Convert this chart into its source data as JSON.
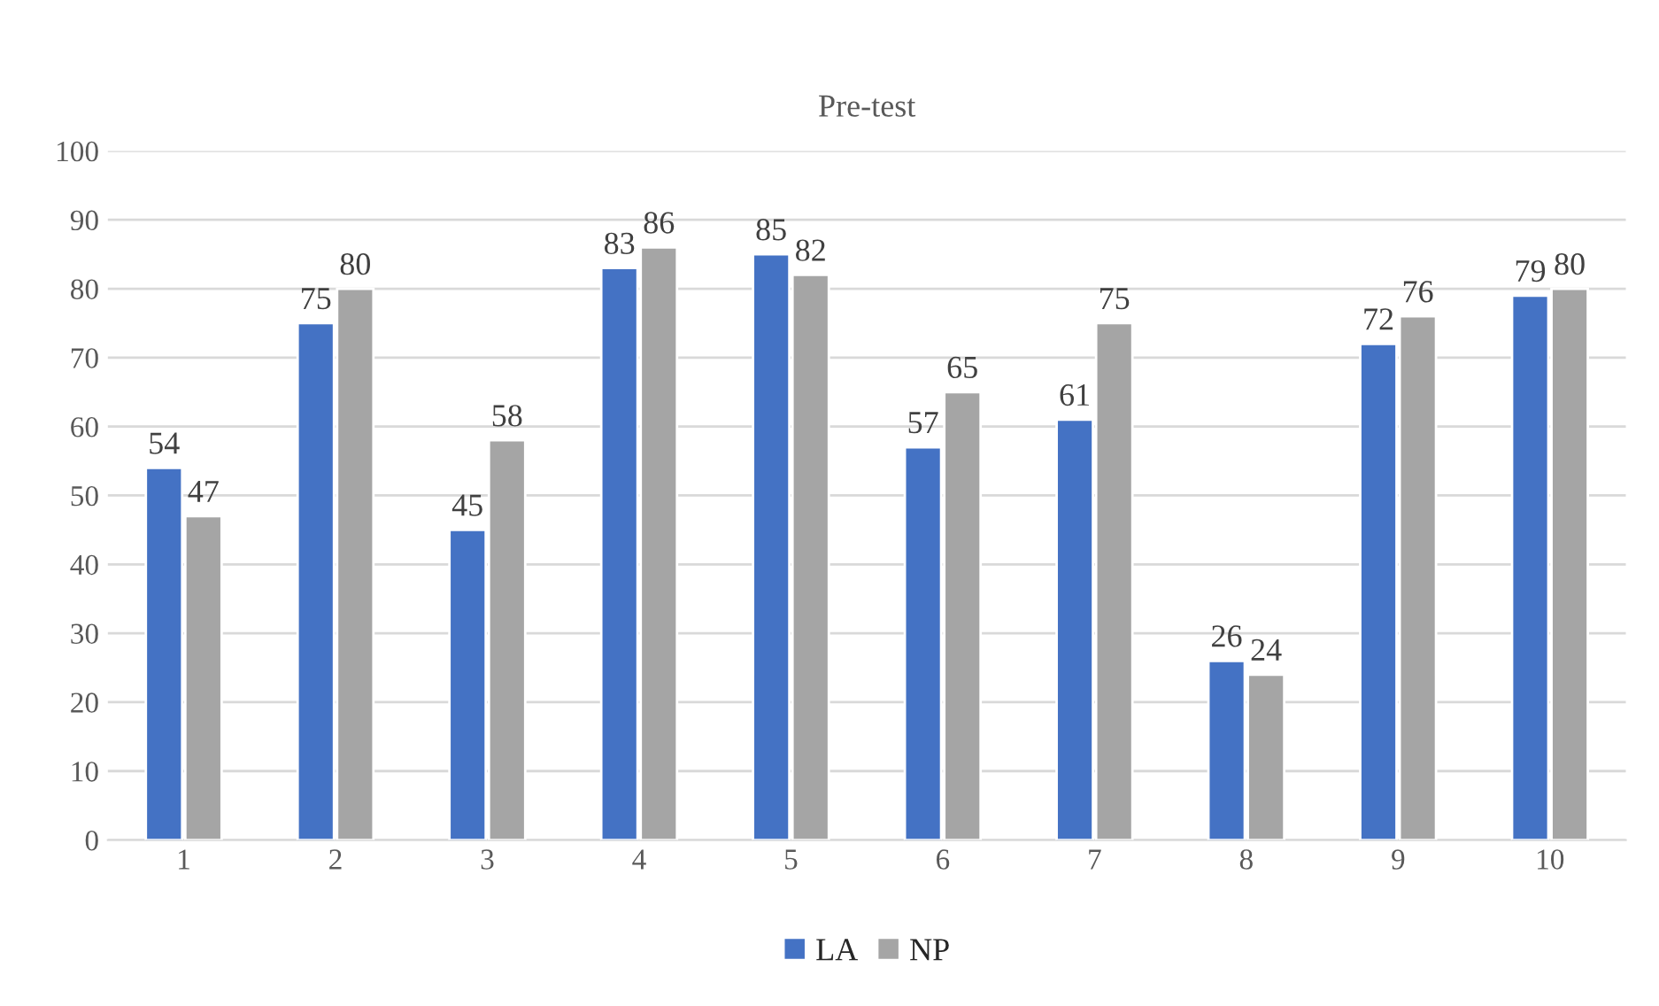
{
  "chart_data": {
    "type": "bar",
    "title": "Pre-test",
    "categories": [
      "1",
      "2",
      "3",
      "4",
      "5",
      "6",
      "7",
      "8",
      "9",
      "10"
    ],
    "series": [
      {
        "name": "LA",
        "color": "#4472c4",
        "values": [
          54,
          75,
          45,
          83,
          85,
          57,
          61,
          26,
          72,
          79
        ]
      },
      {
        "name": "NP",
        "color": "#a5a5a5",
        "values": [
          47,
          80,
          58,
          86,
          82,
          65,
          75,
          24,
          76,
          80
        ]
      }
    ],
    "ylim": [
      0,
      100
    ],
    "yticks": [
      0,
      10,
      20,
      30,
      40,
      50,
      60,
      70,
      80,
      90,
      100
    ],
    "grid": "y",
    "legend": "bottom",
    "data_labels": true
  }
}
